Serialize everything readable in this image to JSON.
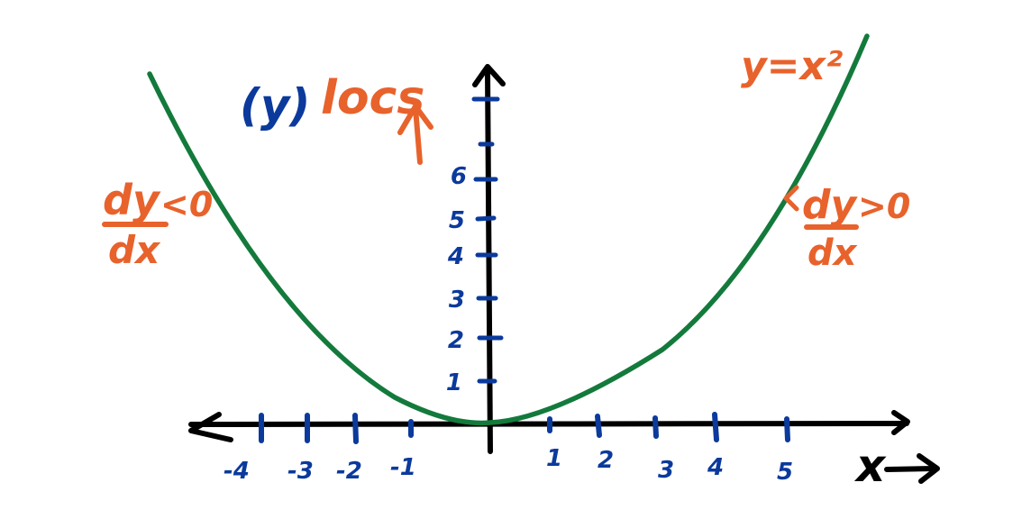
{
  "diagram": {
    "curve_label": "y=x²",
    "y_axis_title_paren": "(y)",
    "y_axis_title_word": "locs",
    "x_axis_label": "x",
    "left_slope": {
      "numerator": "dy",
      "inequality": "<0",
      "denominator": "dx"
    },
    "right_slope": {
      "numerator": "dy",
      "inequality": ">0",
      "denominator": "dx"
    },
    "x_tick_labels": [
      "-4",
      "-3",
      "-2",
      "-1",
      "1",
      "2",
      "3",
      "4",
      "5"
    ],
    "y_tick_labels": [
      "1",
      "2",
      "3",
      "4",
      "5",
      "6"
    ],
    "colors": {
      "axes": "#000000",
      "curve": "#137a3c",
      "ticks": "#0b3a9c",
      "annotations": "#e8622c"
    }
  }
}
